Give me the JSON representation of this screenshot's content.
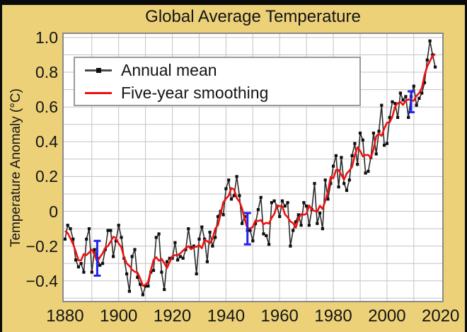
{
  "title": "Global Average Temperature",
  "colors": {
    "page_background": "#0a0a0a",
    "panel_background": "#ecd179",
    "plot_background": "#ffffff",
    "grid": "#c3c3c3",
    "frame": "#8a8a8a",
    "annual_line": "#2b2b2b",
    "annual_marker": "#0f0f0f",
    "smoothing_line": "#ee1111",
    "error_bar": "#2222ee",
    "text": "#141414"
  },
  "chart_data": {
    "type": "line",
    "title": "Global Average Temperature",
    "xlabel": "",
    "ylabel": "Temperature Anomaly (°C)",
    "xlim": [
      1879.5,
      2020.6
    ],
    "ylim": [
      -0.515,
      1.02
    ],
    "grid": true,
    "grid_step_x_years": 10,
    "grid_step_y": 0.1,
    "legend_position": "top-left",
    "x_tick_labels": [
      "1880",
      "1900",
      "1920",
      "1940",
      "1960",
      "1980",
      "2000",
      "2020"
    ],
    "x_tick_values": [
      1880,
      1900,
      1920,
      1940,
      1960,
      1980,
      2000,
      2020
    ],
    "y_tick_labels": [
      "1.0",
      "0.8",
      "0.6",
      "0.4",
      "0.2",
      "0",
      "−0.2",
      "−0.4"
    ],
    "y_tick_values": [
      1.0,
      0.8,
      0.6,
      0.4,
      0.2,
      0,
      -0.2,
      -0.4
    ],
    "series": [
      {
        "name": "Annual mean",
        "color": "#2b2b2b",
        "marker": "square",
        "x_start_year": 1880,
        "values": [
          -0.16,
          -0.08,
          -0.1,
          -0.16,
          -0.28,
          -0.32,
          -0.3,
          -0.35,
          -0.16,
          -0.1,
          -0.35,
          -0.22,
          -0.27,
          -0.31,
          -0.3,
          -0.22,
          -0.11,
          -0.11,
          -0.26,
          -0.17,
          -0.08,
          -0.15,
          -0.27,
          -0.36,
          -0.46,
          -0.26,
          -0.22,
          -0.38,
          -0.42,
          -0.48,
          -0.43,
          -0.43,
          -0.35,
          -0.34,
          -0.15,
          -0.13,
          -0.35,
          -0.45,
          -0.29,
          -0.27,
          -0.27,
          -0.18,
          -0.28,
          -0.26,
          -0.27,
          -0.22,
          -0.1,
          -0.21,
          -0.2,
          -0.36,
          -0.16,
          -0.09,
          -0.16,
          -0.29,
          -0.12,
          -0.2,
          -0.15,
          -0.03,
          0.0,
          -0.02,
          0.13,
          0.18,
          0.07,
          0.09,
          0.2,
          0.09,
          -0.07,
          -0.03,
          -0.11,
          -0.11,
          -0.17,
          -0.07,
          0.01,
          0.08,
          -0.13,
          -0.14,
          -0.19,
          0.05,
          0.06,
          0.03,
          -0.03,
          0.06,
          0.03,
          0.05,
          -0.2,
          -0.11,
          -0.06,
          -0.02,
          -0.08,
          0.05,
          0.03,
          -0.08,
          0.01,
          0.16,
          -0.07,
          -0.01,
          -0.1,
          0.18,
          0.07,
          0.16,
          0.26,
          0.32,
          0.14,
          0.31,
          0.16,
          0.12,
          0.18,
          0.32,
          0.39,
          0.27,
          0.45,
          0.41,
          0.22,
          0.23,
          0.31,
          0.45,
          0.33,
          0.46,
          0.61,
          0.38,
          0.39,
          0.54,
          0.63,
          0.62,
          0.54,
          0.68,
          0.64,
          0.66,
          0.54,
          0.66,
          0.72,
          0.61,
          0.65,
          0.68,
          0.74,
          0.87,
          0.98,
          0.9,
          0.83
        ]
      },
      {
        "name": "Five-year smoothing",
        "color": "#ee1111",
        "derived": true,
        "method": "centered moving average",
        "window": 5
      }
    ],
    "error_bars": [
      {
        "year": 1892,
        "center": -0.27,
        "half": 0.1
      },
      {
        "year": 1948,
        "center": -0.1,
        "half": 0.09
      },
      {
        "year": 2009,
        "center": 0.63,
        "half": 0.06
      }
    ]
  }
}
